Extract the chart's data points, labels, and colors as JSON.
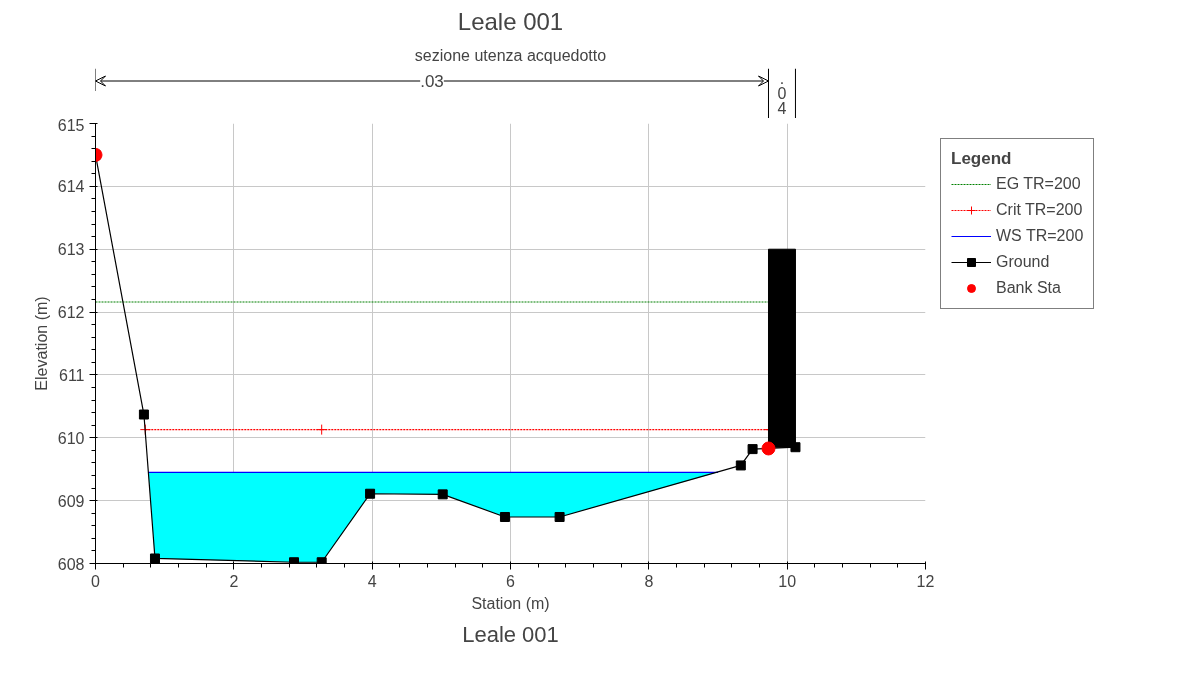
{
  "chart_data": {
    "type": "line",
    "title": "Leale 001",
    "subtitle": "sezione utenza acquedotto",
    "xlabel": "Station (m)",
    "ylabel": "Elevation (m)",
    "legend_title": "Legend",
    "annotations": [
      ".03",
      ".04",
      "Leale 001"
    ],
    "xlim": [
      0,
      12
    ],
    "ylim": [
      608,
      615
    ],
    "xticks": [
      0,
      2,
      4,
      6,
      8,
      10,
      12
    ],
    "yticks": [
      608,
      609,
      610,
      611,
      612,
      613,
      614,
      615
    ],
    "grid": true,
    "legend": "right",
    "series": [
      {
        "name": "EG TR=200",
        "color": "#008000",
        "line_style": "dotted",
        "marker": "none",
        "x": [
          0,
          9.73
        ],
        "values": [
          612.16,
          612.16
        ]
      },
      {
        "name": "Crit TR=200",
        "color": "#ff0000",
        "line_style": "dotted",
        "marker": "cross",
        "x": [
          0.72,
          3.27,
          9.75
        ],
        "values": [
          610.13,
          610.13,
          610.13
        ]
      },
      {
        "name": "WS TR=200",
        "color": "#0000ff",
        "x": [
          0.77,
          0.86,
          2.87,
          3.27,
          3.97,
          5.02,
          5.92,
          6.71,
          9.0
        ],
        "values": [
          609.45,
          609.45,
          609.45,
          609.45,
          609.45,
          609.45,
          609.45,
          609.45,
          609.45
        ],
        "lower": [
          609.37,
          608.08,
          608.02,
          608.02,
          609.11,
          609.1,
          608.74,
          608.74,
          609.45
        ],
        "upper": [
          609.45,
          609.45,
          609.45,
          609.45,
          609.45,
          609.45,
          609.45,
          609.45,
          609.45
        ]
      },
      {
        "name": "Ground",
        "color": "#000000",
        "marker": "square",
        "line_style": "solid",
        "x": [
          0,
          0.7,
          0.86,
          2.87,
          3.27,
          3.97,
          5.02,
          5.92,
          6.71,
          9.33,
          9.5,
          9.73,
          10.12
        ],
        "values": [
          614.5,
          610.37,
          608.08,
          608.02,
          608.02,
          609.11,
          609.1,
          608.74,
          608.74,
          609.56,
          609.82,
          609.83,
          609.85
        ]
      },
      {
        "name": "Bank Sta",
        "type": "scatter",
        "color": "#ff0000",
        "marker": "circle",
        "x": [
          0,
          9.73
        ],
        "values": [
          614.5,
          609.83
        ]
      },
      {
        "type": "bar",
        "color": "#000000",
        "x": [
          9.925
        ],
        "base": [
          609.85
        ],
        "values": [
          3.15
        ]
      }
    ]
  }
}
